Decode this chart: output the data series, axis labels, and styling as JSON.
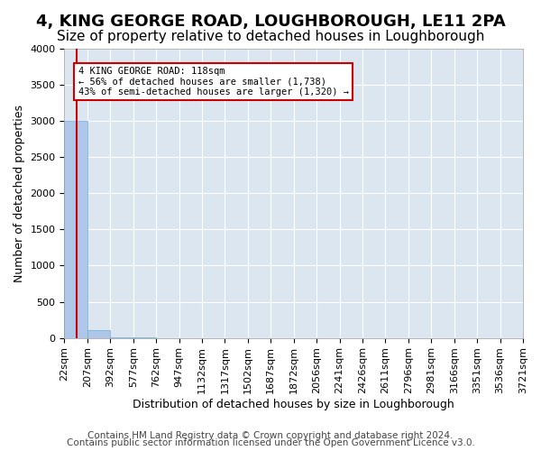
{
  "title": "4, KING GEORGE ROAD, LOUGHBOROUGH, LE11 2PA",
  "subtitle": "Size of property relative to detached houses in Loughborough",
  "xlabel": "Distribution of detached houses by size in Loughborough",
  "ylabel": "Number of detached properties",
  "footer1": "Contains HM Land Registry data © Crown copyright and database right 2024.",
  "footer2": "Contains public sector information licensed under the Open Government Licence v3.0.",
  "bin_labels": [
    "22sqm",
    "207sqm",
    "392sqm",
    "577sqm",
    "762sqm",
    "947sqm",
    "1132sqm",
    "1317sqm",
    "1502sqm",
    "1687sqm",
    "1872sqm",
    "2056sqm",
    "2241sqm",
    "2426sqm",
    "2611sqm",
    "2796sqm",
    "2981sqm",
    "3166sqm",
    "3351sqm",
    "3536sqm",
    "3721sqm"
  ],
  "bar_values": [
    3000,
    110,
    5,
    2,
    1,
    0,
    0,
    0,
    0,
    0,
    0,
    0,
    0,
    0,
    0,
    0,
    0,
    0,
    0,
    0
  ],
  "bar_color": "#aec6e8",
  "bar_edge_color": "#6aaed6",
  "background_color": "#dce6f1",
  "grid_color": "#ffffff",
  "property_line_color": "#cc0000",
  "annotation_text": "4 KING GEORGE ROAD: 118sqm\n← 56% of detached houses are smaller (1,738)\n43% of semi-detached houses are larger (1,320) →",
  "annotation_box_color": "#ffffff",
  "annotation_box_edge_color": "#cc0000",
  "ylim": [
    0,
    4000
  ],
  "yticks": [
    0,
    500,
    1000,
    1500,
    2000,
    2500,
    3000,
    3500,
    4000
  ],
  "title_fontsize": 13,
  "subtitle_fontsize": 11,
  "axis_label_fontsize": 9,
  "tick_fontsize": 8,
  "footer_fontsize": 7.5
}
